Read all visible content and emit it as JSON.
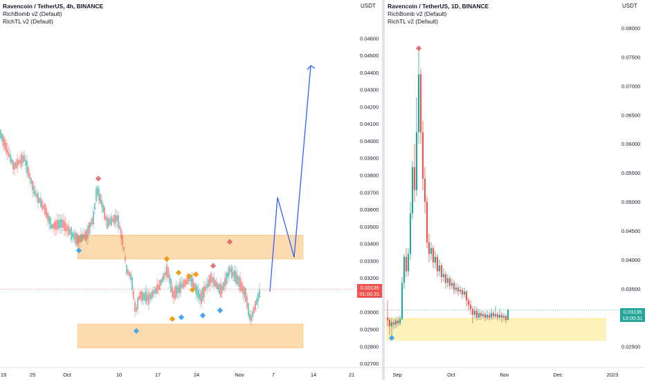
{
  "colors": {
    "up": "#26a69a",
    "down": "#ef5350",
    "zone": "#fcd9a6",
    "zone_border": "#f7b262",
    "zone_right": "#fdf1b5",
    "arrow": "#2962ff",
    "sell_marker": "#e57373",
    "buy_marker": "#42a5f5",
    "orange_marker": "#f39c12",
    "tag_left": "#ef5350",
    "tag_right": "#26a69a",
    "axis_text": "#131722"
  },
  "left_chart": {
    "legend": {
      "title": "Ravencoin / TetherUS, 4h, BINANCE",
      "indicators": [
        "RichBomb v2 (Default)",
        "RichTL v2 (Default)"
      ]
    },
    "unit_label": "USDT",
    "price_ticks": [
      "0.04600",
      "0.04500",
      "0.04400",
      "0.04300",
      "0.04200",
      "0.04100",
      "0.04000",
      "0.03900",
      "0.03800",
      "0.03700",
      "0.03600",
      "0.03500",
      "0.03400",
      "0.03300",
      "0.03200",
      "0.03100",
      "0.03000",
      "0.02900",
      "0.02800",
      "0.02700"
    ],
    "price_range": [
      0.0268,
      0.0469
    ],
    "time_ticks": [
      "19",
      "25",
      "Oct",
      "10",
      "17",
      "24",
      "Nov",
      "7",
      "14",
      "21"
    ],
    "last_price": "0.03135",
    "countdown": "01:00:31",
    "chart_data": {
      "type": "candlestick",
      "symbol": "Ravencoin / TetherUS",
      "interval": "4h",
      "exchange": "BINANCE",
      "ylim": [
        0.0268,
        0.0469
      ],
      "xlabel": "",
      "ylabel": "USDT",
      "zones": [
        {
          "low": 0.0331,
          "high": 0.0345
        },
        {
          "low": 0.0279,
          "high": 0.0293
        }
      ],
      "projection": [
        {
          "x": "Nov 4",
          "y": 0.0312
        },
        {
          "x": "Nov 6",
          "y": 0.0367
        },
        {
          "x": "Nov 9",
          "y": 0.0332
        },
        {
          "x": "Nov 11",
          "y": 0.0444
        },
        {
          "x": "Nov 13",
          "y": 0.043
        }
      ],
      "markers": [
        {
          "type": "sell",
          "x": "Oct 6",
          "y": 0.0378
        },
        {
          "type": "buy",
          "x": "Oct 2",
          "y": 0.0336
        },
        {
          "type": "buy",
          "x": "Oct 12",
          "y": 0.0289
        },
        {
          "type": "orange",
          "x": "Oct 18",
          "y": 0.0331
        },
        {
          "type": "orange",
          "x": "Oct 20",
          "y": 0.0323
        },
        {
          "type": "orange",
          "x": "Oct 22",
          "y": 0.0321
        },
        {
          "type": "orange",
          "x": "Oct 23",
          "y": 0.0322
        },
        {
          "type": "orange",
          "x": "Oct 22",
          "y": 0.0313
        },
        {
          "type": "orange",
          "x": "Oct 19",
          "y": 0.0296
        },
        {
          "type": "buy",
          "x": "Oct 20",
          "y": 0.0297
        },
        {
          "type": "buy",
          "x": "Oct 25",
          "y": 0.0298
        },
        {
          "type": "buy",
          "x": "Oct 29",
          "y": 0.0301
        },
        {
          "type": "sell",
          "x": "Oct 27",
          "y": 0.0327
        },
        {
          "type": "sell",
          "x": "Oct 31",
          "y": 0.0341
        }
      ],
      "last_price": 0.03135
    }
  },
  "right_chart": {
    "legend": {
      "title": "Ravencoin / TetherUS, 1D, BINANCE",
      "indicators": [
        "RichBomb v2 (Default)",
        "RichTL v2 (Default)"
      ]
    },
    "unit_label": "USDT",
    "price_ticks": [
      "0.08000",
      "0.07500",
      "0.07000",
      "0.06500",
      "0.06000",
      "0.05500",
      "0.05000",
      "0.04500",
      "0.04000",
      "0.03500",
      "0.03000",
      "0.02500"
    ],
    "price_range": [
      0.0215,
      0.0815
    ],
    "time_ticks": [
      "Sep",
      "Oct",
      "Nov",
      "Dec",
      "2023"
    ],
    "last_price": "0.03135",
    "countdown": "13:00:31",
    "chart_data": {
      "type": "candlestick",
      "symbol": "Ravencoin / TetherUS",
      "interval": "1D",
      "exchange": "BINANCE",
      "ylim": [
        0.0215,
        0.0815
      ],
      "xlabel": "",
      "ylabel": "USDT",
      "zones": [
        {
          "low": 0.026,
          "high": 0.03
        }
      ],
      "markers": [
        {
          "type": "sell",
          "x": "Sep 17",
          "y": 0.0765
        },
        {
          "type": "buy",
          "x": "Aug 30",
          "y": 0.0265
        }
      ],
      "last_price": 0.03135
    }
  }
}
